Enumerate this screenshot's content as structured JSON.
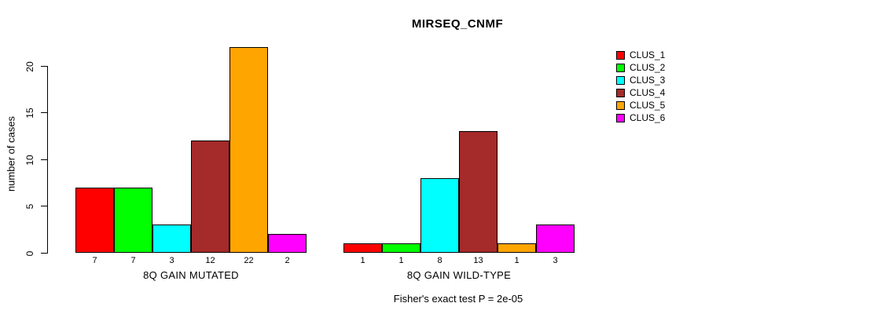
{
  "chart_data": {
    "type": "bar",
    "title": "MIRSEQ_CNMF",
    "ylabel": "number of cases",
    "xlabel": "",
    "ylim": [
      0,
      22
    ],
    "yticks": [
      0,
      5,
      10,
      15,
      20
    ],
    "categories": [
      "8Q GAIN MUTATED",
      "8Q GAIN WILD-TYPE"
    ],
    "series": [
      {
        "name": "CLUS_1",
        "color": "#FF0000",
        "values": [
          7,
          1
        ]
      },
      {
        "name": "CLUS_2",
        "color": "#00FF00",
        "values": [
          7,
          1
        ]
      },
      {
        "name": "CLUS_3",
        "color": "#00FFFF",
        "values": [
          3,
          8
        ]
      },
      {
        "name": "CLUS_4",
        "color": "#A52A2A",
        "values": [
          12,
          13
        ]
      },
      {
        "name": "CLUS_5",
        "color": "#FFA500",
        "values": [
          22,
          1
        ]
      },
      {
        "name": "CLUS_6",
        "color": "#FF00FF",
        "values": [
          2,
          3
        ]
      }
    ],
    "bar_value_labels": [
      [
        "7",
        "7",
        "3",
        "12",
        "22",
        "2"
      ],
      [
        "1",
        "1",
        "8",
        "13",
        "1",
        "3"
      ]
    ],
    "annotation": "Fisher's exact test P = 2e-05",
    "legend_position": "top-right",
    "grid": false,
    "axis_color": "#000000",
    "bar_border_color": "#000000"
  },
  "legend": {
    "items": [
      {
        "label": "CLUS_1",
        "color": "#FF0000"
      },
      {
        "label": "CLUS_2",
        "color": "#00FF00"
      },
      {
        "label": "CLUS_3",
        "color": "#00FFFF"
      },
      {
        "label": "CLUS_4",
        "color": "#A52A2A"
      },
      {
        "label": "CLUS_5",
        "color": "#FFA500"
      },
      {
        "label": "CLUS_6",
        "color": "#FF00FF"
      }
    ]
  }
}
